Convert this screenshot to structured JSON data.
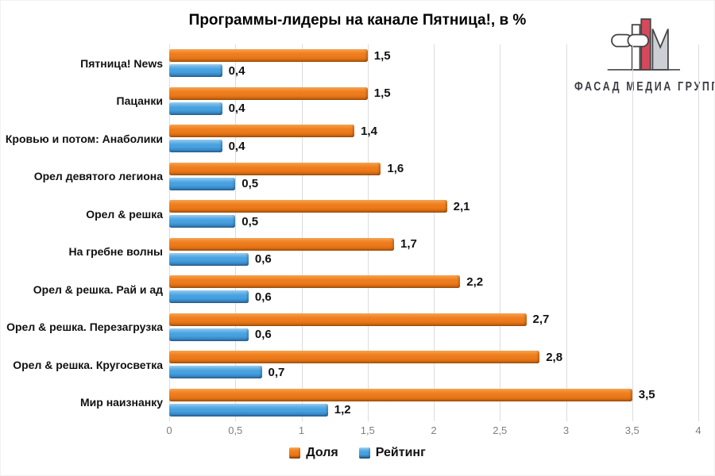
{
  "chart_data": {
    "type": "bar",
    "orientation": "horizontal",
    "title": "Программы-лидеры на канале Пятница!, в %",
    "categories": [
      "Пятница! News",
      "Пацанки",
      "Кровью и потом: Анаболики",
      "Орел девятого легиона",
      "Орел & решка",
      "На гребне волны",
      "Орел & решка. Рай и ад",
      "Орел & решка. Перезагрузка",
      "Орел & решка. Кругосветка",
      "Мир наизнанку"
    ],
    "series": [
      {
        "name": "Доля",
        "color": "#ED7D1F",
        "values": [
          1.5,
          1.5,
          1.4,
          1.6,
          2.1,
          1.7,
          2.2,
          2.7,
          2.8,
          3.5
        ]
      },
      {
        "name": "Рейтинг",
        "color": "#4AA2E0",
        "values": [
          0.4,
          0.4,
          0.4,
          0.5,
          0.5,
          0.6,
          0.6,
          0.6,
          0.7,
          1.2
        ]
      }
    ],
    "value_labels": [
      [
        "1,5",
        "1,5",
        "1,4",
        "1,6",
        "2,1",
        "1,7",
        "2,2",
        "2,7",
        "2,8",
        "3,5"
      ],
      [
        "0,4",
        "0,4",
        "0,4",
        "0,5",
        "0,5",
        "0,6",
        "0,6",
        "0,6",
        "0,7",
        "1,2"
      ]
    ],
    "xlim": [
      0,
      4
    ],
    "xticks": [
      "0",
      "0,5",
      "1",
      "1,5",
      "2",
      "2,5",
      "3",
      "3,5",
      "4"
    ],
    "grid": true,
    "legend_position": "bottom",
    "gridline_color": "#DCDCDC",
    "axis_label_color": "#7F7F7F"
  },
  "logo": {
    "text": "ФАСАД МЕДИА ГРУПП",
    "accent_color": "#D6495C"
  }
}
